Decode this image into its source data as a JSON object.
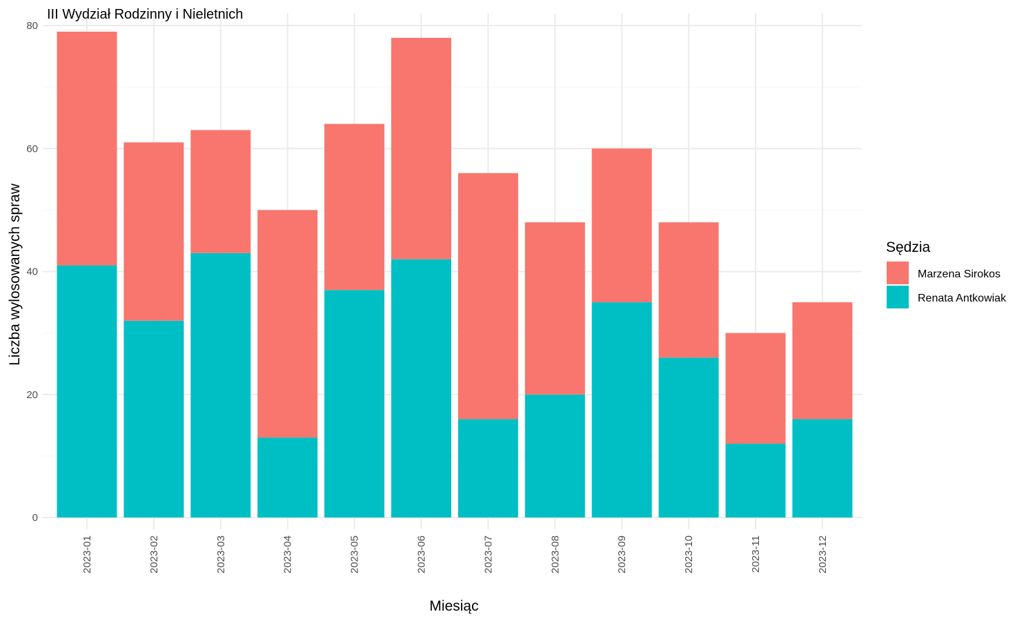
{
  "chart_data": {
    "type": "bar",
    "stacked": true,
    "title": "III Wydział Rodzinny i Nieletnich",
    "xlabel": "Miesiąc",
    "ylabel": "Liczba wylosowanych spraw",
    "ylim": [
      0,
      80
    ],
    "yticks": [
      0,
      20,
      40,
      60,
      80
    ],
    "grid": true,
    "legend": {
      "title": "Sędzia",
      "position": "right"
    },
    "categories": [
      "2023-01",
      "2023-02",
      "2023-03",
      "2023-04",
      "2023-05",
      "2023-06",
      "2023-07",
      "2023-08",
      "2023-09",
      "2023-10",
      "2023-11",
      "2023-12"
    ],
    "series": [
      {
        "name": "Marzena Sirokos",
        "color": "#F8766D",
        "values": [
          38,
          29,
          20,
          37,
          27,
          36,
          40,
          28,
          25,
          22,
          18,
          19
        ]
      },
      {
        "name": "Renata Antkowiak",
        "color": "#00BFC4",
        "values": [
          41,
          32,
          43,
          13,
          37,
          42,
          16,
          20,
          35,
          26,
          12,
          16
        ]
      }
    ]
  }
}
